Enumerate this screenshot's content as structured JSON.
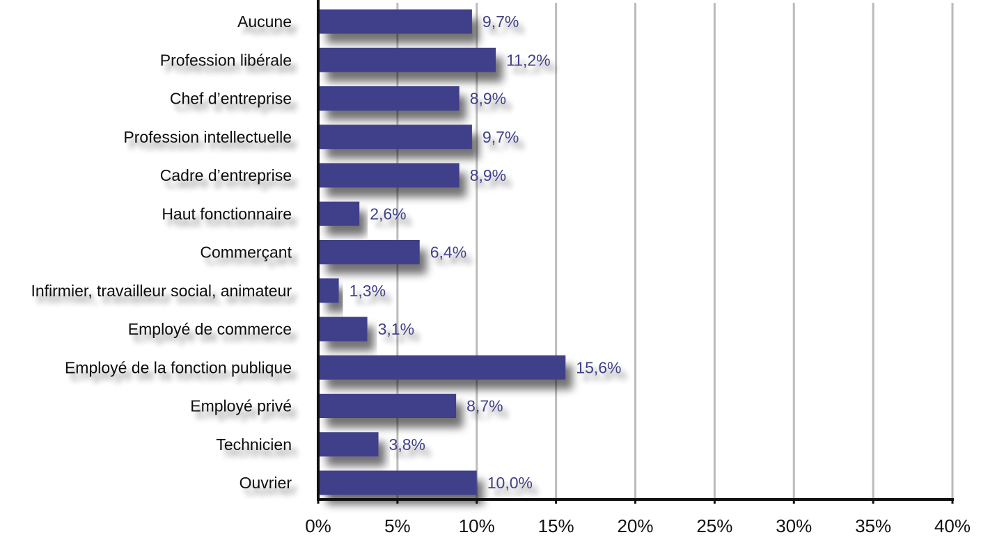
{
  "chart_data": {
    "type": "bar",
    "orientation": "horizontal",
    "categories": [
      "Aucune",
      "Profession libérale",
      "Chef d’entreprise",
      "Profession intellectuelle",
      "Cadre d’entreprise",
      "Haut fonctionnaire",
      "Commerçant",
      "Infirmier, travailleur social, animateur",
      "Employé de commerce",
      "Employé de la fonction publique",
      "Employé privé",
      "Technicien",
      "Ouvrier"
    ],
    "values": [
      9.7,
      11.2,
      8.9,
      9.7,
      8.9,
      2.6,
      6.4,
      1.3,
      3.1,
      15.6,
      8.7,
      3.8,
      10.0
    ],
    "value_labels": [
      "9,7%",
      "11,2%",
      "8,9%",
      "9,7%",
      "8,9%",
      "2,6%",
      "6,4%",
      "1,3%",
      "3,1%",
      "15,6%",
      "8,7%",
      "3,8%",
      "10,0%"
    ],
    "x_ticks": [
      "0%",
      "5%",
      "10%",
      "15%",
      "20%",
      "25%",
      "30%",
      "35%",
      "40%"
    ],
    "xlim": [
      0,
      40
    ],
    "grid": true,
    "bar_color": "#3f3f8a",
    "label_color": "#3f3f8a",
    "grid_color": "#bbbbbb",
    "axis_color": "#111111"
  }
}
